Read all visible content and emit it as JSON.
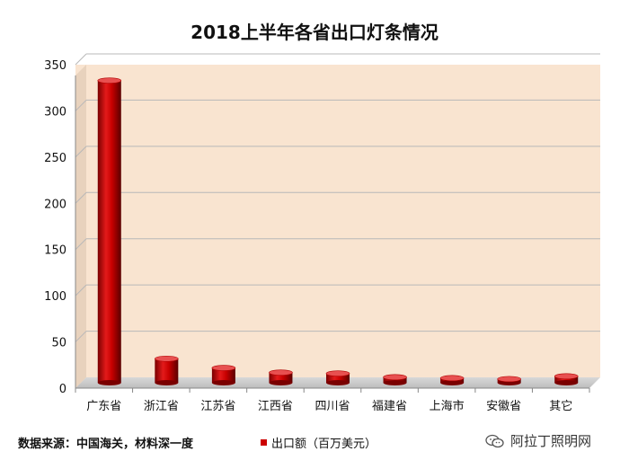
{
  "chart_data": {
    "type": "bar",
    "title": "2018上半年各省出口灯条情况",
    "categories": [
      "广东省",
      "浙江省",
      "江苏省",
      "江西省",
      "四川省",
      "福建省",
      "上海市",
      "安徽省",
      "其它"
    ],
    "series": [
      {
        "name": "出口额（百万美元）",
        "values": [
          327,
          26,
          16,
          11,
          10,
          6,
          5,
          4,
          7
        ]
      }
    ],
    "ylim": [
      0,
      350
    ],
    "yticks": [
      0,
      50,
      100,
      150,
      200,
      250,
      300,
      350
    ],
    "grid": true,
    "legend_position": "bottom",
    "colors": {
      "bar": "#cc0000",
      "plot_bg": "#f9e4d0",
      "grid": "#b8b8b8"
    }
  },
  "source_note": "数据来源：中国海关，材料深一度",
  "watermark": {
    "text": "阿拉丁照明网",
    "icon": "wechat-icon"
  }
}
